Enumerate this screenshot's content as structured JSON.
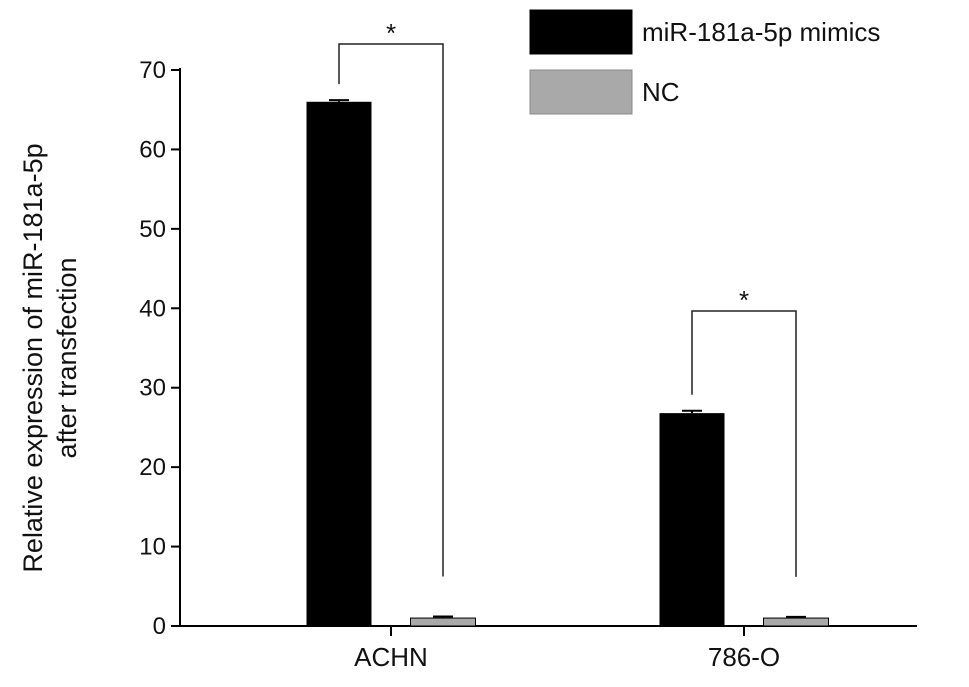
{
  "chart_data": {
    "type": "bar",
    "categories": [
      "ACHN",
      "786-O"
    ],
    "series": [
      {
        "name": "miR-181a-5p mimics",
        "values": [
          66,
          26.8
        ],
        "errors": [
          0.2,
          0.3
        ],
        "color": "#000000"
      },
      {
        "name": "NC",
        "values": [
          1.0,
          1.0
        ],
        "errors": [
          0.2,
          0.15
        ],
        "color": "#a9a9a9"
      }
    ],
    "ylabel_lines": [
      "Relative expression of miR-181a-5p",
      "after transfection"
    ],
    "ylim": [
      0,
      70
    ],
    "yticks": [
      0,
      10,
      20,
      30,
      40,
      50,
      60,
      70
    ],
    "grid": false,
    "legend_position": "top-right",
    "significance": [
      {
        "category": "ACHN",
        "label": "*"
      },
      {
        "category": "786-O",
        "label": "*"
      }
    ]
  }
}
